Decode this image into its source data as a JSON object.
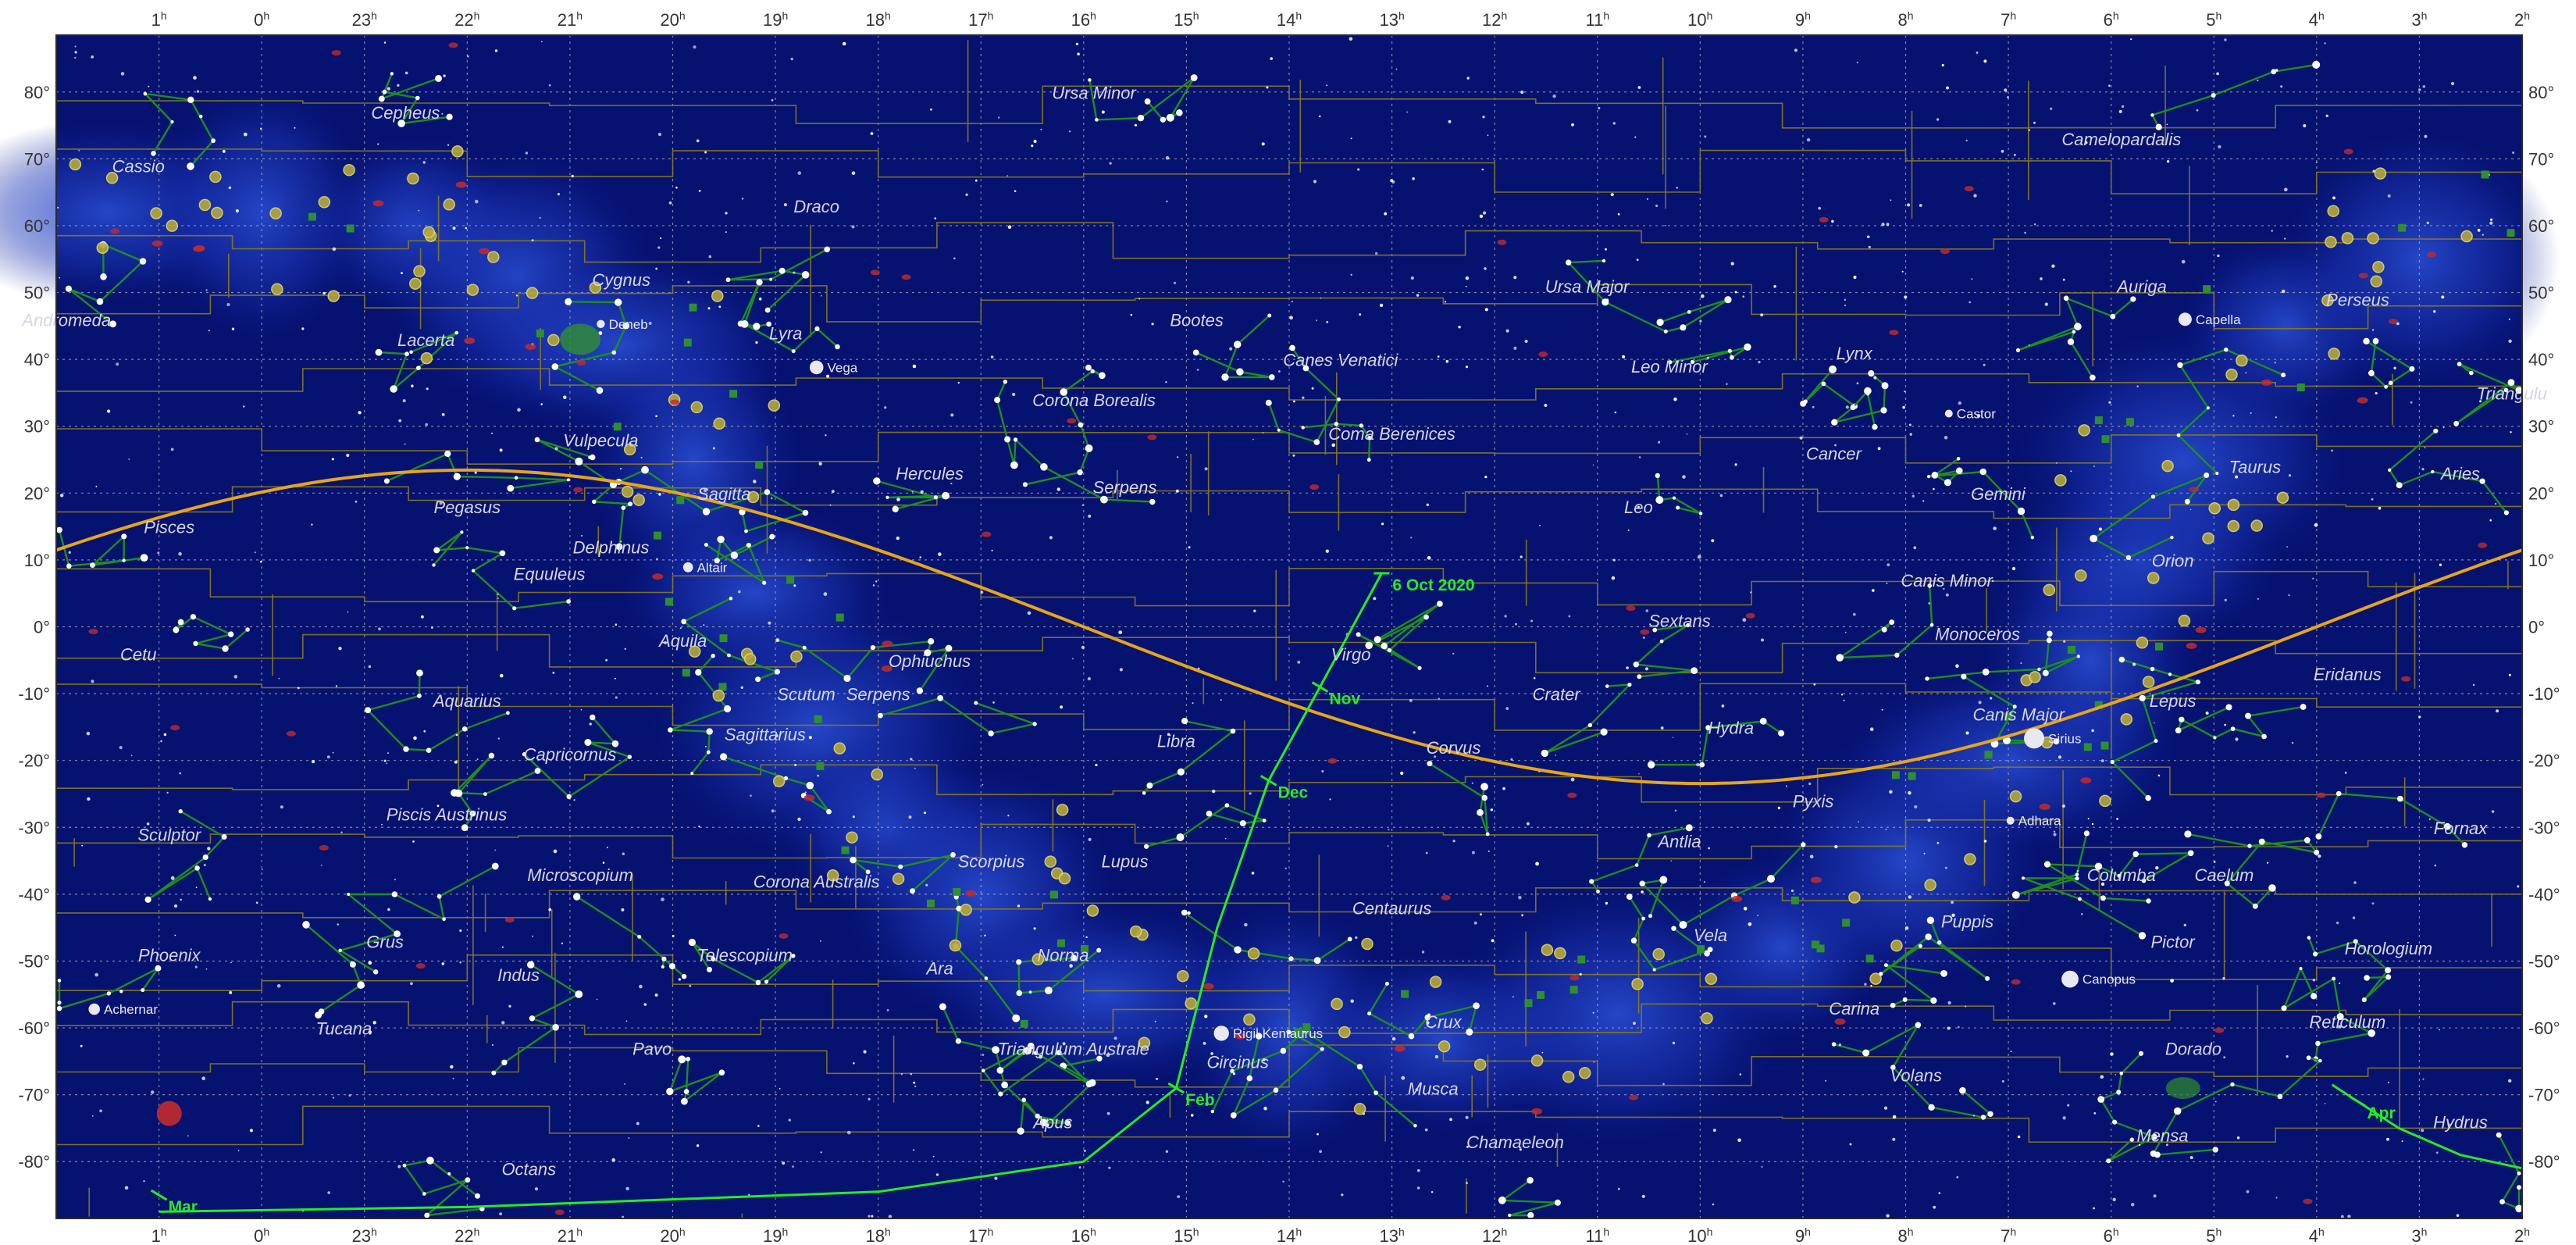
{
  "ra_labels": [
    "1",
    "0",
    "23",
    "22",
    "21",
    "20",
    "19",
    "18",
    "17",
    "16",
    "15",
    "14",
    "13",
    "12",
    "11",
    "10",
    "9",
    "8",
    "7",
    "6",
    "5",
    "4",
    "3",
    "2"
  ],
  "ra_suffix": "h",
  "dec_labels": [
    "80°",
    "70°",
    "60°",
    "50°",
    "40°",
    "30°",
    "20°",
    "10°",
    "0°",
    "-10°",
    "-20°",
    "-30°",
    "-40°",
    "-50°",
    "-60°",
    "-70°",
    "-80°"
  ],
  "constellations": [
    {
      "name": "Cepheus",
      "ra": 22.6,
      "dec": 76
    },
    {
      "name": "Ursa Minor",
      "ra": 15.9,
      "dec": 79
    },
    {
      "name": "Camelopardalis",
      "ra": 5.9,
      "dec": 72
    },
    {
      "name": "Cassio",
      "ra": 1.2,
      "dec": 68
    },
    {
      "name": "Andromeda",
      "ra": 1.9,
      "dec": 45
    },
    {
      "name": "Cygnus",
      "ra": 20.5,
      "dec": 51
    },
    {
      "name": "Draco",
      "ra": 18.6,
      "dec": 62
    },
    {
      "name": "Ursa Major",
      "ra": 11.1,
      "dec": 50
    },
    {
      "name": "Auriga",
      "ra": 5.7,
      "dec": 50
    },
    {
      "name": "Perseus",
      "ra": 3.6,
      "dec": 48
    },
    {
      "name": "Lacerta",
      "ra": 22.4,
      "dec": 42
    },
    {
      "name": "Lyra",
      "ra": 18.9,
      "dec": 43
    },
    {
      "name": "Bootes",
      "ra": 14.9,
      "dec": 45
    },
    {
      "name": "Canes Venatici",
      "ra": 13.5,
      "dec": 39
    },
    {
      "name": "Leo Minor",
      "ra": 10.3,
      "dec": 38
    },
    {
      "name": "Lynx",
      "ra": 8.5,
      "dec": 40
    },
    {
      "name": "Triangulu",
      "ra": 2.1,
      "dec": 34
    },
    {
      "name": "Corona Borealis",
      "ra": 15.9,
      "dec": 33
    },
    {
      "name": "Vulpecula",
      "ra": 20.7,
      "dec": 27
    },
    {
      "name": "Coma Berenices",
      "ra": 13.0,
      "dec": 28
    },
    {
      "name": "Hercules",
      "ra": 17.5,
      "dec": 22
    },
    {
      "name": "Serpens",
      "ra": 15.6,
      "dec": 20
    },
    {
      "name": "Sagitta",
      "ra": 19.5,
      "dec": 19
    },
    {
      "name": "Cancer",
      "ra": 8.7,
      "dec": 25
    },
    {
      "name": "Gemini",
      "ra": 7.1,
      "dec": 19
    },
    {
      "name": "Taurus",
      "ra": 4.6,
      "dec": 23
    },
    {
      "name": "Aries",
      "ra": 2.6,
      "dec": 22
    },
    {
      "name": "Pisces",
      "ra": 0.9,
      "dec": 14
    },
    {
      "name": "Pegasus",
      "ra": 22.0,
      "dec": 17
    },
    {
      "name": "Leo",
      "ra": 10.6,
      "dec": 17
    },
    {
      "name": "Delphinus",
      "ra": 20.6,
      "dec": 11
    },
    {
      "name": "Equuleus",
      "ra": 21.2,
      "dec": 7
    },
    {
      "name": "Orion",
      "ra": 5.4,
      "dec": 9
    },
    {
      "name": "Canis Minor",
      "ra": 7.6,
      "dec": 6
    },
    {
      "name": "Sextans",
      "ra": 10.2,
      "dec": 0
    },
    {
      "name": "Monoceros",
      "ra": 7.3,
      "dec": -2
    },
    {
      "name": "Aquila",
      "ra": 19.9,
      "dec": -3
    },
    {
      "name": "Virgo",
      "ra": 13.4,
      "dec": -5
    },
    {
      "name": "Ophiuchus",
      "ra": 17.5,
      "dec": -6
    },
    {
      "name": "Eridanus",
      "ra": 3.7,
      "dec": -8
    },
    {
      "name": "Cetu",
      "ra": 1.2,
      "dec": -5
    },
    {
      "name": "Serpens",
      "ra": 18.0,
      "dec": -11
    },
    {
      "name": "Crater",
      "ra": 11.4,
      "dec": -11
    },
    {
      "name": "Scutum",
      "ra": 18.7,
      "dec": -11
    },
    {
      "name": "Aquarius",
      "ra": 22.0,
      "dec": -12
    },
    {
      "name": "Lepus",
      "ra": 5.4,
      "dec": -12
    },
    {
      "name": "Canis Major",
      "ra": 6.9,
      "dec": -14
    },
    {
      "name": "Sagittarius",
      "ra": 19.1,
      "dec": -17
    },
    {
      "name": "Hydra",
      "ra": 9.7,
      "dec": -16
    },
    {
      "name": "Libra",
      "ra": 15.1,
      "dec": -18
    },
    {
      "name": "Corvus",
      "ra": 12.4,
      "dec": -19
    },
    {
      "name": "Capricornus",
      "ra": 21.0,
      "dec": -20
    },
    {
      "name": "Pyxis",
      "ra": 8.9,
      "dec": -27
    },
    {
      "name": "Piscis Austrinus",
      "ra": 22.2,
      "dec": -29
    },
    {
      "name": "Fornax",
      "ra": 2.6,
      "dec": -31
    },
    {
      "name": "Sculptor",
      "ra": 0.9,
      "dec": -32
    },
    {
      "name": "Antlia",
      "ra": 10.2,
      "dec": -33
    },
    {
      "name": "Lupus",
      "ra": 15.6,
      "dec": -36
    },
    {
      "name": "Scorpius",
      "ra": 16.9,
      "dec": -36
    },
    {
      "name": "Microscopium",
      "ra": 20.9,
      "dec": -38
    },
    {
      "name": "Corona Australis",
      "ra": 18.6,
      "dec": -39
    },
    {
      "name": "Columba",
      "ra": 5.9,
      "dec": -38
    },
    {
      "name": "Caelum",
      "ra": 4.9,
      "dec": -38
    },
    {
      "name": "Centaurus",
      "ra": 13.0,
      "dec": -43
    },
    {
      "name": "Puppis",
      "ra": 7.4,
      "dec": -45
    },
    {
      "name": "Vela",
      "ra": 9.9,
      "dec": -47
    },
    {
      "name": "Pictor",
      "ra": 5.4,
      "dec": -48
    },
    {
      "name": "Grus",
      "ra": 22.8,
      "dec": -48
    },
    {
      "name": "Phoenix",
      "ra": 0.9,
      "dec": -50
    },
    {
      "name": "Telescopium",
      "ra": 19.3,
      "dec": -50
    },
    {
      "name": "Norma",
      "ra": 16.2,
      "dec": -50
    },
    {
      "name": "Horologium",
      "ra": 3.3,
      "dec": -49
    },
    {
      "name": "Indus",
      "ra": 21.5,
      "dec": -53
    },
    {
      "name": "Ara",
      "ra": 17.4,
      "dec": -52
    },
    {
      "name": "Carina",
      "ra": 8.5,
      "dec": -58
    },
    {
      "name": "Tucana",
      "ra": 23.2,
      "dec": -61
    },
    {
      "name": "Reticulum",
      "ra": 3.7,
      "dec": -60
    },
    {
      "name": "Crux",
      "ra": 12.5,
      "dec": -60
    },
    {
      "name": "Pavo",
      "ra": 20.2,
      "dec": -64
    },
    {
      "name": "Triangulum Australe",
      "ra": 16.1,
      "dec": -64
    },
    {
      "name": "Dorado",
      "ra": 5.2,
      "dec": -64
    },
    {
      "name": "Circinus",
      "ra": 14.5,
      "dec": -66
    },
    {
      "name": "Volans",
      "ra": 7.9,
      "dec": -68
    },
    {
      "name": "Musca",
      "ra": 12.6,
      "dec": -70
    },
    {
      "name": "Hydrus",
      "ra": 2.6,
      "dec": -75
    },
    {
      "name": "Apus",
      "ra": 16.3,
      "dec": -75
    },
    {
      "name": "Mensa",
      "ra": 5.5,
      "dec": -77
    },
    {
      "name": "Chamaeleon",
      "ra": 11.8,
      "dec": -78
    },
    {
      "name": "Octans",
      "ra": 21.4,
      "dec": -82
    }
  ],
  "stars": [
    {
      "name": "Deneb",
      "ra": 20.7,
      "dec": 45.3,
      "mag": 1.2
    },
    {
      "name": "Vega",
      "ra": 18.6,
      "dec": 38.8,
      "mag": 0.0
    },
    {
      "name": "Capella",
      "ra": 5.28,
      "dec": 46.0,
      "mag": 0.1
    },
    {
      "name": "Castor",
      "ra": 7.58,
      "dec": 31.9,
      "mag": 1.6
    },
    {
      "name": "Altair",
      "ra": 19.85,
      "dec": 8.9,
      "mag": 0.8
    },
    {
      "name": "Sirius",
      "ra": 6.75,
      "dec": -16.7,
      "mag": -1.4
    },
    {
      "name": "Adhara",
      "ra": 6.98,
      "dec": -29.0,
      "mag": 1.5
    },
    {
      "name": "Canopus",
      "ra": 6.4,
      "dec": -52.7,
      "mag": -0.7
    },
    {
      "name": "Achernar",
      "ra": 1.63,
      "dec": -57.2,
      "mag": 0.5
    },
    {
      "name": "Rigil Kentaurus",
      "ra": 14.66,
      "dec": -60.8,
      "mag": -0.3
    }
  ],
  "comet_path": {
    "date_label": "6 Oct 2020",
    "ticks": [
      {
        "label": "Nov",
        "ra": 13.7,
        "dec": -9
      },
      {
        "label": "Dec",
        "ra": 14.2,
        "dec": -23
      },
      {
        "label": "Feb",
        "ra": 15.1,
        "dec": -69
      },
      {
        "label": "Mar",
        "ra": 1.0,
        "dec": -85
      },
      {
        "label": "Apr",
        "ra": 3.6,
        "dec": -71
      }
    ]
  },
  "colors": {
    "sky": "#061270",
    "grid": "#b8b8b0",
    "boundaries": "#8a7a22",
    "figures": "#1d8f1d",
    "ecliptic": "#e6a51a",
    "path": "#22ee22",
    "frame": "#ffffff"
  }
}
